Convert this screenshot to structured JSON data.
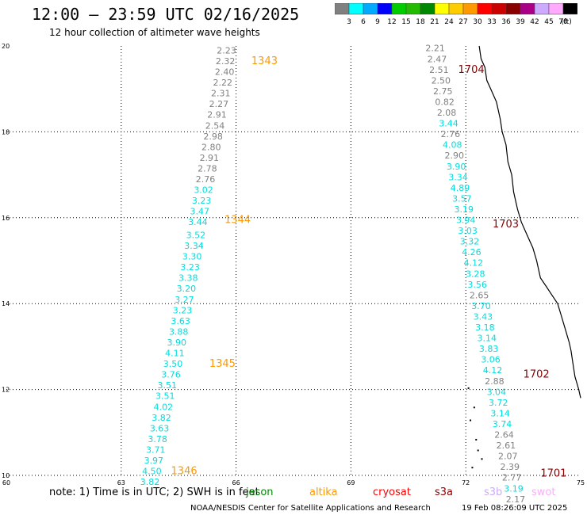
{
  "header": {
    "title": "12:00 – 23:59 UTC 02/16/2025",
    "subtitle": "12 hour collection of altimeter wave heights"
  },
  "color_scale": {
    "unit": "(ft)",
    "bins": [
      {
        "label": "3",
        "color": "#808080"
      },
      {
        "label": "6",
        "color": "#00ffff"
      },
      {
        "label": "9",
        "color": "#00aaff"
      },
      {
        "label": "12",
        "color": "#0000ff"
      },
      {
        "label": "15",
        "color": "#00cc00"
      },
      {
        "label": "18",
        "color": "#22bb00"
      },
      {
        "label": "21",
        "color": "#008800"
      },
      {
        "label": "24",
        "color": "#ffff00"
      },
      {
        "label": "27",
        "color": "#ffcc00"
      },
      {
        "label": "30",
        "color": "#ff9900"
      },
      {
        "label": "33",
        "color": "#ff0000"
      },
      {
        "label": "36",
        "color": "#cc0000"
      },
      {
        "label": "39",
        "color": "#880000"
      },
      {
        "label": "42",
        "color": "#aa0088"
      },
      {
        "label": "45",
        "color": "#ccaaff"
      },
      {
        "label": "70",
        "color": "#ffaaff"
      },
      {
        "label": "",
        "color": "#000000"
      }
    ]
  },
  "chart_data": {
    "type": "scatter",
    "xlim": [
      60,
      75
    ],
    "ylim": [
      10,
      20
    ],
    "x_ticks": [
      "60",
      "63",
      "66",
      "69",
      "72",
      "75"
    ],
    "y_ticks": [
      "10",
      "12",
      "14",
      "16",
      "18",
      "20"
    ],
    "grid": true,
    "tracks": [
      {
        "pass": "1343",
        "label_pos": [
          66.4,
          19.65
        ],
        "color": "#ff9900"
      },
      {
        "pass": "1344",
        "label_pos": [
          65.7,
          15.95
        ],
        "color": "#ff9900"
      },
      {
        "pass": "1345",
        "label_pos": [
          65.3,
          12.6
        ],
        "color": "#ff9900"
      },
      {
        "pass": "1346",
        "label_pos": [
          64.3,
          10.1
        ],
        "color": "#ff9900"
      },
      {
        "pass": "1704",
        "label_pos": [
          71.8,
          19.45
        ],
        "color": "#880000"
      },
      {
        "pass": "1703",
        "label_pos": [
          72.7,
          15.85
        ],
        "color": "#880000"
      },
      {
        "pass": "1702",
        "label_pos": [
          73.5,
          12.35
        ],
        "color": "#880000"
      },
      {
        "pass": "1701",
        "label_pos": [
          73.95,
          10.05
        ],
        "color": "#880000"
      }
    ],
    "points": [
      {
        "x": 65.75,
        "y": 19.9,
        "v": "2.23",
        "c": "#808080"
      },
      {
        "x": 65.72,
        "y": 19.65,
        "v": "2.32",
        "c": "#808080"
      },
      {
        "x": 65.7,
        "y": 19.4,
        "v": "2.40",
        "c": "#808080"
      },
      {
        "x": 65.65,
        "y": 19.15,
        "v": "2.22",
        "c": "#808080"
      },
      {
        "x": 65.6,
        "y": 18.9,
        "v": "2.31",
        "c": "#808080"
      },
      {
        "x": 65.55,
        "y": 18.65,
        "v": "2.27",
        "c": "#808080"
      },
      {
        "x": 65.5,
        "y": 18.4,
        "v": "2.91",
        "c": "#808080"
      },
      {
        "x": 65.45,
        "y": 18.15,
        "v": "2.54",
        "c": "#808080"
      },
      {
        "x": 65.4,
        "y": 17.9,
        "v": "2.98",
        "c": "#808080"
      },
      {
        "x": 65.35,
        "y": 17.65,
        "v": "2.80",
        "c": "#808080"
      },
      {
        "x": 65.3,
        "y": 17.4,
        "v": "2.91",
        "c": "#808080"
      },
      {
        "x": 65.25,
        "y": 17.15,
        "v": "2.78",
        "c": "#808080"
      },
      {
        "x": 65.2,
        "y": 16.9,
        "v": "2.76",
        "c": "#808080"
      },
      {
        "x": 65.15,
        "y": 16.65,
        "v": "3.02",
        "c": "#00dddd"
      },
      {
        "x": 65.1,
        "y": 16.4,
        "v": "3.23",
        "c": "#00dddd"
      },
      {
        "x": 65.05,
        "y": 16.15,
        "v": "3.47",
        "c": "#00dddd"
      },
      {
        "x": 65.0,
        "y": 15.9,
        "v": "3.44",
        "c": "#00dddd"
      },
      {
        "x": 64.95,
        "y": 15.6,
        "v": "3.52",
        "c": "#00dddd"
      },
      {
        "x": 64.9,
        "y": 15.35,
        "v": "3.34",
        "c": "#00dddd"
      },
      {
        "x": 64.85,
        "y": 15.1,
        "v": "3.30",
        "c": "#00dddd"
      },
      {
        "x": 64.8,
        "y": 14.85,
        "v": "3.23",
        "c": "#00dddd"
      },
      {
        "x": 64.75,
        "y": 14.6,
        "v": "3.38",
        "c": "#00dddd"
      },
      {
        "x": 64.7,
        "y": 14.35,
        "v": "3.20",
        "c": "#00dddd"
      },
      {
        "x": 64.65,
        "y": 14.1,
        "v": "3.27",
        "c": "#00dddd"
      },
      {
        "x": 64.6,
        "y": 13.85,
        "v": "3.23",
        "c": "#00dddd"
      },
      {
        "x": 64.55,
        "y": 13.6,
        "v": "3.63",
        "c": "#00dddd"
      },
      {
        "x": 64.5,
        "y": 13.35,
        "v": "3.88",
        "c": "#00dddd"
      },
      {
        "x": 64.45,
        "y": 13.1,
        "v": "3.90",
        "c": "#00dddd"
      },
      {
        "x": 64.4,
        "y": 12.85,
        "v": "4.11",
        "c": "#00dddd"
      },
      {
        "x": 64.35,
        "y": 12.6,
        "v": "3.50",
        "c": "#00dddd"
      },
      {
        "x": 64.3,
        "y": 12.35,
        "v": "3.76",
        "c": "#00dddd"
      },
      {
        "x": 64.2,
        "y": 12.1,
        "v": "3.51",
        "c": "#00dddd"
      },
      {
        "x": 64.15,
        "y": 11.85,
        "v": "3.51",
        "c": "#00dddd"
      },
      {
        "x": 64.1,
        "y": 11.6,
        "v": "4.02",
        "c": "#00dddd"
      },
      {
        "x": 64.05,
        "y": 11.35,
        "v": "3.82",
        "c": "#00dddd"
      },
      {
        "x": 64.0,
        "y": 11.1,
        "v": "3.63",
        "c": "#00dddd"
      },
      {
        "x": 63.95,
        "y": 10.85,
        "v": "3.78",
        "c": "#00dddd"
      },
      {
        "x": 63.9,
        "y": 10.6,
        "v": "3.71",
        "c": "#00dddd"
      },
      {
        "x": 63.85,
        "y": 10.35,
        "v": "3.97",
        "c": "#00dddd"
      },
      {
        "x": 63.8,
        "y": 10.1,
        "v": "4.50",
        "c": "#00dddd"
      },
      {
        "x": 63.75,
        "y": 9.85,
        "v": "3.82",
        "c": "#00dddd"
      },
      {
        "x": 71.2,
        "y": 19.95,
        "v": "2.21",
        "c": "#808080"
      },
      {
        "x": 71.25,
        "y": 19.7,
        "v": "2.47",
        "c": "#808080"
      },
      {
        "x": 71.3,
        "y": 19.45,
        "v": "2.51",
        "c": "#808080"
      },
      {
        "x": 71.35,
        "y": 19.2,
        "v": "2.50",
        "c": "#808080"
      },
      {
        "x": 71.4,
        "y": 18.95,
        "v": "2.75",
        "c": "#808080"
      },
      {
        "x": 71.45,
        "y": 18.7,
        "v": "0.82",
        "c": "#808080"
      },
      {
        "x": 71.5,
        "y": 18.45,
        "v": "2.08",
        "c": "#808080"
      },
      {
        "x": 71.55,
        "y": 18.2,
        "v": "3.44",
        "c": "#00dddd"
      },
      {
        "x": 71.6,
        "y": 17.95,
        "v": "2.76",
        "c": "#808080"
      },
      {
        "x": 71.65,
        "y": 17.7,
        "v": "4.08",
        "c": "#00dddd"
      },
      {
        "x": 71.7,
        "y": 17.45,
        "v": "2.90",
        "c": "#808080"
      },
      {
        "x": 71.75,
        "y": 17.2,
        "v": "3.90",
        "c": "#00dddd"
      },
      {
        "x": 71.8,
        "y": 16.95,
        "v": "3.34",
        "c": "#00dddd"
      },
      {
        "x": 71.85,
        "y": 16.7,
        "v": "4.89",
        "c": "#00dddd"
      },
      {
        "x": 71.9,
        "y": 16.45,
        "v": "3.57",
        "c": "#00dddd"
      },
      {
        "x": 71.95,
        "y": 16.2,
        "v": "3.19",
        "c": "#00dddd"
      },
      {
        "x": 72.0,
        "y": 15.95,
        "v": "3.94",
        "c": "#00dddd"
      },
      {
        "x": 72.05,
        "y": 15.7,
        "v": "3.03",
        "c": "#00dddd"
      },
      {
        "x": 72.1,
        "y": 15.45,
        "v": "3.32",
        "c": "#00dddd"
      },
      {
        "x": 72.15,
        "y": 15.2,
        "v": "4.26",
        "c": "#00dddd"
      },
      {
        "x": 72.2,
        "y": 14.95,
        "v": "4.12",
        "c": "#00dddd"
      },
      {
        "x": 72.25,
        "y": 14.7,
        "v": "3.28",
        "c": "#00dddd"
      },
      {
        "x": 72.3,
        "y": 14.45,
        "v": "3.56",
        "c": "#00dddd"
      },
      {
        "x": 72.35,
        "y": 14.2,
        "v": "2.65",
        "c": "#808080"
      },
      {
        "x": 72.4,
        "y": 13.95,
        "v": "3.70",
        "c": "#00dddd"
      },
      {
        "x": 72.45,
        "y": 13.7,
        "v": "3.43",
        "c": "#00dddd"
      },
      {
        "x": 72.5,
        "y": 13.45,
        "v": "3.18",
        "c": "#00dddd"
      },
      {
        "x": 72.55,
        "y": 13.2,
        "v": "3.14",
        "c": "#00dddd"
      },
      {
        "x": 72.6,
        "y": 12.95,
        "v": "3.83",
        "c": "#00dddd"
      },
      {
        "x": 72.65,
        "y": 12.7,
        "v": "3.06",
        "c": "#00dddd"
      },
      {
        "x": 72.7,
        "y": 12.45,
        "v": "4.12",
        "c": "#00dddd"
      },
      {
        "x": 72.75,
        "y": 12.2,
        "v": "2.88",
        "c": "#808080"
      },
      {
        "x": 72.8,
        "y": 11.95,
        "v": "3.04",
        "c": "#00dddd"
      },
      {
        "x": 72.85,
        "y": 11.7,
        "v": "3.72",
        "c": "#00dddd"
      },
      {
        "x": 72.9,
        "y": 11.45,
        "v": "3.14",
        "c": "#00dddd"
      },
      {
        "x": 72.95,
        "y": 11.2,
        "v": "3.74",
        "c": "#00dddd"
      },
      {
        "x": 73.0,
        "y": 10.95,
        "v": "2.64",
        "c": "#808080"
      },
      {
        "x": 73.05,
        "y": 10.7,
        "v": "2.61",
        "c": "#808080"
      },
      {
        "x": 73.1,
        "y": 10.45,
        "v": "2.07",
        "c": "#808080"
      },
      {
        "x": 73.15,
        "y": 10.2,
        "v": "2.39",
        "c": "#808080"
      },
      {
        "x": 73.2,
        "y": 9.95,
        "v": "2.77",
        "c": "#808080"
      },
      {
        "x": 73.25,
        "y": 9.7,
        "v": "3.19",
        "c": "#00dddd"
      },
      {
        "x": 73.3,
        "y": 9.45,
        "v": "2.17",
        "c": "#808080"
      }
    ]
  },
  "footer": {
    "note": "note: 1) Time is in UTC; 2) SWH is in feet",
    "satellites": [
      {
        "name": "jason",
        "color": "#008800"
      },
      {
        "name": "altika",
        "color": "#ff9900"
      },
      {
        "name": "cryosat",
        "color": "#ff0000"
      },
      {
        "name": "s3a",
        "color": "#880000"
      },
      {
        "name": "s3b",
        "color": "#ccaaff"
      },
      {
        "name": "swot",
        "color": "#ffaaff"
      }
    ],
    "credit": "NOAA/NESDIS Center for Satellite Applications and Research",
    "timestamp": "19 Feb 08:26:09 UTC 2025"
  }
}
